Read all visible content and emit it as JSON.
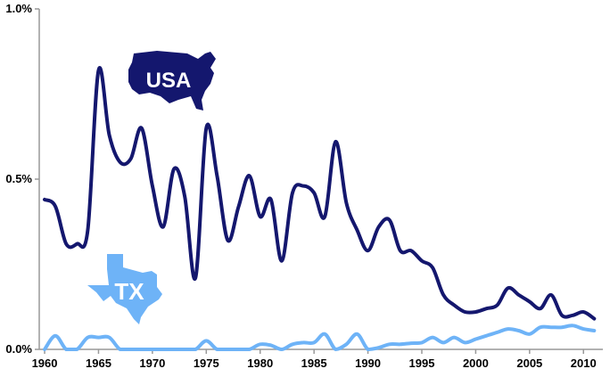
{
  "chart_data": {
    "type": "line",
    "title": "",
    "xlabel": "",
    "ylabel": "",
    "xlim": [
      1959.5,
      2011.8
    ],
    "ylim": [
      0,
      1.0
    ],
    "grid": false,
    "legend": "none",
    "x_ticks": [
      1960,
      1965,
      1970,
      1975,
      1980,
      1985,
      1990,
      1995,
      2000,
      2005,
      2010
    ],
    "y_ticks": [
      {
        "value": 0,
        "label": "0.0%"
      },
      {
        "value": 0.5,
        "label": "0.5%"
      },
      {
        "value": 1.0,
        "label": "1.0%"
      }
    ],
    "series": [
      {
        "key": "usa",
        "color": "#14176e",
        "points": [
          [
            1960,
            0.44
          ],
          [
            1961,
            0.42
          ],
          [
            1962,
            0.31
          ],
          [
            1963,
            0.31
          ],
          [
            1964,
            0.35
          ],
          [
            1965,
            0.82
          ],
          [
            1966,
            0.63
          ],
          [
            1967,
            0.55
          ],
          [
            1968,
            0.56
          ],
          [
            1969,
            0.65
          ],
          [
            1970,
            0.48
          ],
          [
            1971,
            0.36
          ],
          [
            1972,
            0.53
          ],
          [
            1973,
            0.45
          ],
          [
            1974,
            0.21
          ],
          [
            1975,
            0.65
          ],
          [
            1976,
            0.51
          ],
          [
            1977,
            0.32
          ],
          [
            1978,
            0.42
          ],
          [
            1979,
            0.51
          ],
          [
            1980,
            0.39
          ],
          [
            1981,
            0.44
          ],
          [
            1982,
            0.26
          ],
          [
            1983,
            0.46
          ],
          [
            1984,
            0.48
          ],
          [
            1985,
            0.46
          ],
          [
            1986,
            0.39
          ],
          [
            1987,
            0.61
          ],
          [
            1988,
            0.43
          ],
          [
            1989,
            0.35
          ],
          [
            1990,
            0.29
          ],
          [
            1991,
            0.36
          ],
          [
            1992,
            0.38
          ],
          [
            1993,
            0.29
          ],
          [
            1994,
            0.29
          ],
          [
            1995,
            0.26
          ],
          [
            1996,
            0.24
          ],
          [
            1997,
            0.16
          ],
          [
            1998,
            0.13
          ],
          [
            1999,
            0.11
          ],
          [
            2000,
            0.11
          ],
          [
            2001,
            0.12
          ],
          [
            2002,
            0.13
          ],
          [
            2003,
            0.18
          ],
          [
            2004,
            0.16
          ],
          [
            2005,
            0.14
          ],
          [
            2006,
            0.12
          ],
          [
            2007,
            0.16
          ],
          [
            2008,
            0.1
          ],
          [
            2009,
            0.1
          ],
          [
            2010,
            0.11
          ],
          [
            2011,
            0.09
          ]
        ]
      },
      {
        "key": "tx",
        "color": "#6eb3f7",
        "points": [
          [
            1960,
            0.0
          ],
          [
            1961,
            0.04
          ],
          [
            1962,
            0.0
          ],
          [
            1963,
            0.0
          ],
          [
            1964,
            0.035
          ],
          [
            1965,
            0.035
          ],
          [
            1966,
            0.035
          ],
          [
            1967,
            0.0
          ],
          [
            1968,
            0.0
          ],
          [
            1969,
            0.0
          ],
          [
            1970,
            0.0
          ],
          [
            1971,
            0.0
          ],
          [
            1972,
            0.0
          ],
          [
            1973,
            0.0
          ],
          [
            1974,
            0.0
          ],
          [
            1975,
            0.025
          ],
          [
            1976,
            0.0
          ],
          [
            1977,
            0.0
          ],
          [
            1978,
            0.0
          ],
          [
            1979,
            0.0
          ],
          [
            1980,
            0.015
          ],
          [
            1981,
            0.012
          ],
          [
            1982,
            0.0
          ],
          [
            1983,
            0.015
          ],
          [
            1984,
            0.02
          ],
          [
            1985,
            0.02
          ],
          [
            1986,
            0.045
          ],
          [
            1987,
            0.0
          ],
          [
            1988,
            0.015
          ],
          [
            1989,
            0.045
          ],
          [
            1990,
            0.0
          ],
          [
            1991,
            0.005
          ],
          [
            1992,
            0.015
          ],
          [
            1993,
            0.015
          ],
          [
            1994,
            0.018
          ],
          [
            1995,
            0.02
          ],
          [
            1996,
            0.035
          ],
          [
            1997,
            0.02
          ],
          [
            1998,
            0.035
          ],
          [
            1999,
            0.02
          ],
          [
            2000,
            0.03
          ],
          [
            2001,
            0.04
          ],
          [
            2002,
            0.05
          ],
          [
            2003,
            0.06
          ],
          [
            2004,
            0.055
          ],
          [
            2005,
            0.045
          ],
          [
            2006,
            0.065
          ],
          [
            2007,
            0.065
          ],
          [
            2008,
            0.065
          ],
          [
            2009,
            0.07
          ],
          [
            2010,
            0.06
          ],
          [
            2011,
            0.055
          ]
        ]
      }
    ],
    "annotations": [
      {
        "key": "usa",
        "text": "USA",
        "shape": "us-map-icon",
        "color": "#14176e"
      },
      {
        "key": "tx",
        "text": "TX",
        "shape": "texas-map-icon",
        "color": "#6eb3f7"
      }
    ]
  }
}
